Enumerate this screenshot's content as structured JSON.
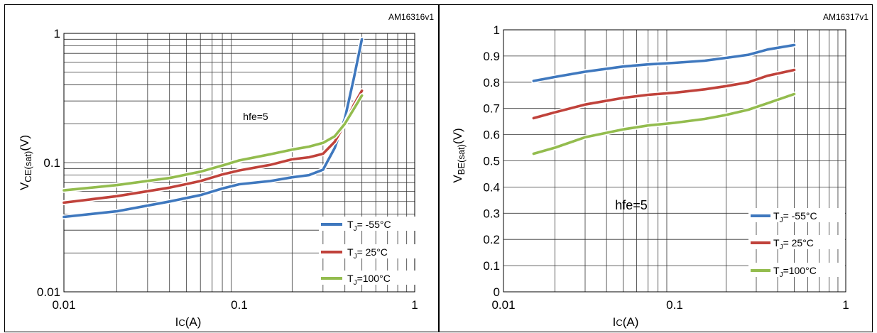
{
  "chart_data": [
    {
      "type": "line",
      "id_code": "AM16316v1",
      "annotation": "hfe=5",
      "xscale": "log",
      "yscale": "log",
      "xlim": [
        0.01,
        1
      ],
      "ylim": [
        0.01,
        1
      ],
      "x_ticks": [
        "0.01",
        "0.1",
        "1"
      ],
      "y_ticks": [
        "0.01",
        "0.1",
        "1"
      ],
      "xlabel": {
        "main": "I",
        "sub": "C",
        "rest": "(A)"
      },
      "ylabel": {
        "main": "V",
        "sub": "CE(sat)",
        "rest": "(V)"
      },
      "grid": true,
      "legend_position": "bottom-right",
      "series": [
        {
          "name": "T_J= -55°C",
          "color": "#3f78be",
          "x": [
            0.01,
            0.02,
            0.04,
            0.06,
            0.08,
            0.1,
            0.15,
            0.2,
            0.25,
            0.3,
            0.35,
            0.4,
            0.45,
            0.5
          ],
          "y": [
            0.038,
            0.042,
            0.05,
            0.056,
            0.063,
            0.068,
            0.072,
            0.077,
            0.08,
            0.088,
            0.13,
            0.22,
            0.45,
            0.9
          ]
        },
        {
          "name": "T_J= 25°C",
          "color": "#c0423b",
          "x": [
            0.01,
            0.02,
            0.04,
            0.06,
            0.08,
            0.1,
            0.15,
            0.2,
            0.25,
            0.3,
            0.35,
            0.4,
            0.45,
            0.5
          ],
          "y": [
            0.049,
            0.055,
            0.064,
            0.072,
            0.081,
            0.087,
            0.096,
            0.106,
            0.11,
            0.117,
            0.145,
            0.2,
            0.28,
            0.36
          ]
        },
        {
          "name": "T_J=100°C",
          "color": "#93bc4e",
          "x": [
            0.01,
            0.02,
            0.04,
            0.06,
            0.08,
            0.1,
            0.15,
            0.2,
            0.25,
            0.3,
            0.35,
            0.4,
            0.45,
            0.5
          ],
          "y": [
            0.061,
            0.067,
            0.076,
            0.085,
            0.095,
            0.104,
            0.116,
            0.126,
            0.133,
            0.142,
            0.16,
            0.2,
            0.26,
            0.33
          ]
        }
      ]
    },
    {
      "type": "line",
      "id_code": "AM16317v1",
      "annotation": "hfe=5",
      "xscale": "log",
      "yscale": "linear",
      "xlim": [
        0.01,
        1
      ],
      "ylim": [
        0,
        1
      ],
      "x_ticks": [
        "0.01",
        "0.1",
        "1"
      ],
      "y_ticks": [
        "0",
        "0.1",
        "0.2",
        "0.3",
        "0.4",
        "0.5",
        "0.6",
        "0.7",
        "0.8",
        "0.9",
        "1"
      ],
      "xlabel": {
        "main": "I",
        "sub": "C",
        "rest": "(A)"
      },
      "ylabel": {
        "main": "V",
        "sub": "BE(sat)",
        "rest": "(V)"
      },
      "grid": true,
      "legend_position": "bottom-right",
      "series": [
        {
          "name": "T_J= -55°C",
          "color": "#3f78be",
          "x": [
            0.015,
            0.02,
            0.03,
            0.05,
            0.07,
            0.1,
            0.15,
            0.2,
            0.27,
            0.35,
            0.5
          ],
          "y": [
            0.805,
            0.82,
            0.84,
            0.86,
            0.868,
            0.874,
            0.882,
            0.893,
            0.905,
            0.925,
            0.942
          ]
        },
        {
          "name": "T_J= 25°C",
          "color": "#c0423b",
          "x": [
            0.015,
            0.02,
            0.03,
            0.05,
            0.07,
            0.1,
            0.15,
            0.2,
            0.27,
            0.35,
            0.5
          ],
          "y": [
            0.663,
            0.685,
            0.715,
            0.74,
            0.752,
            0.76,
            0.773,
            0.785,
            0.8,
            0.825,
            0.847
          ]
        },
        {
          "name": "T_J=100°C",
          "color": "#93bc4e",
          "x": [
            0.015,
            0.02,
            0.03,
            0.05,
            0.07,
            0.1,
            0.15,
            0.2,
            0.27,
            0.35,
            0.5
          ],
          "y": [
            0.527,
            0.55,
            0.59,
            0.62,
            0.635,
            0.645,
            0.66,
            0.675,
            0.695,
            0.72,
            0.755
          ]
        }
      ]
    }
  ]
}
